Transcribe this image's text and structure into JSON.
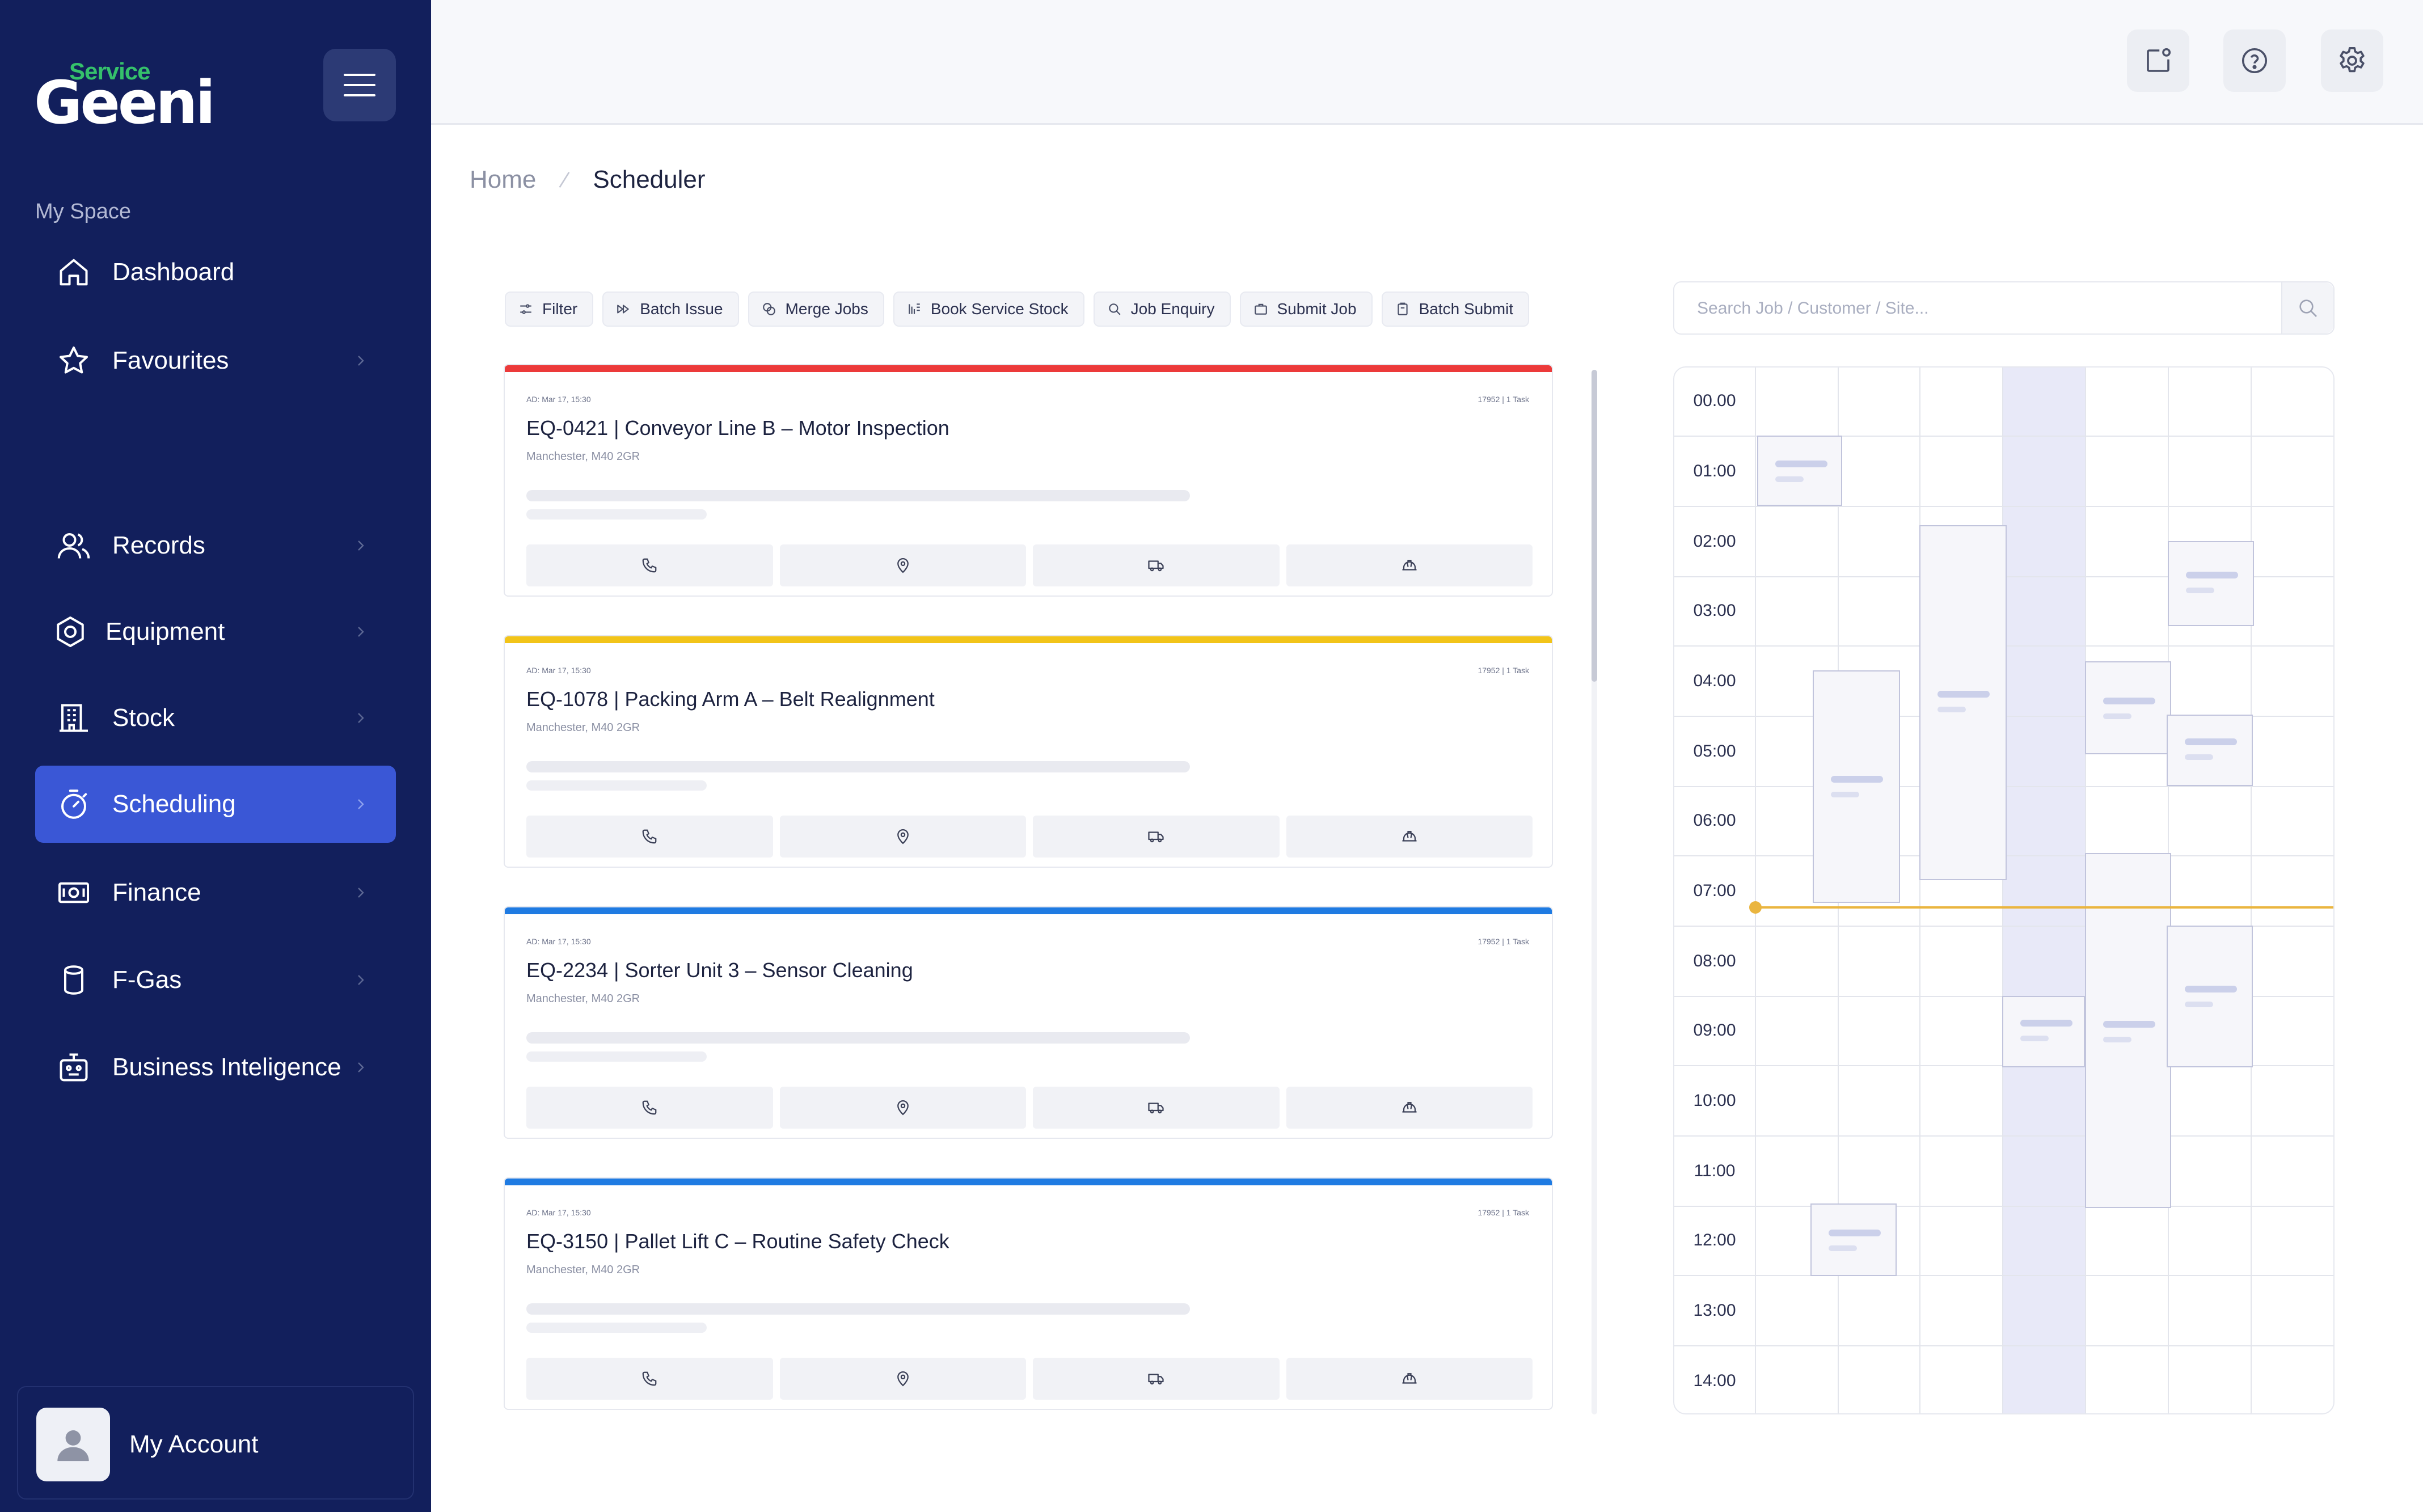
{
  "brand": {
    "service": "Service",
    "name": "Geeni"
  },
  "sidebar": {
    "section_label": "My Space",
    "items": [
      {
        "label": "Dashboard",
        "icon": "home-icon",
        "chevron": false,
        "active": false
      },
      {
        "label": "Favourites",
        "icon": "star-icon",
        "chevron": true,
        "active": false
      },
      {
        "label": "Records",
        "icon": "users-icon",
        "chevron": true,
        "active": false
      },
      {
        "label": "Equipment",
        "icon": "hexagon-gear-icon",
        "chevron": true,
        "active": false
      },
      {
        "label": "Stock",
        "icon": "building-icon",
        "chevron": true,
        "active": false
      },
      {
        "label": "Scheduling",
        "icon": "stopwatch-icon",
        "chevron": true,
        "active": true
      },
      {
        "label": "Finance",
        "icon": "money-icon",
        "chevron": true,
        "active": false
      },
      {
        "label": "F-Gas",
        "icon": "gas-cylinder-icon",
        "chevron": true,
        "active": false
      },
      {
        "label": "Business Inteligence",
        "icon": "robot-icon",
        "chevron": true,
        "active": false
      }
    ],
    "account_label": "My Account"
  },
  "topbar": {
    "buttons": [
      "notification-icon",
      "help-icon",
      "settings-icon"
    ]
  },
  "breadcrumb": {
    "home": "Home",
    "current": "Scheduler"
  },
  "toolbar": {
    "buttons": [
      {
        "label": "Filter",
        "icon": "filter-icon"
      },
      {
        "label": "Batch Issue",
        "icon": "fast-forward-icon"
      },
      {
        "label": "Merge Jobs",
        "icon": "merge-icon"
      },
      {
        "label": "Book Service Stock",
        "icon": "stock-icon"
      },
      {
        "label": "Job Enquiry",
        "icon": "search-icon"
      },
      {
        "label": "Submit Job",
        "icon": "briefcase-icon"
      },
      {
        "label": "Batch Submit",
        "icon": "clipboard-icon"
      }
    ]
  },
  "search": {
    "placeholder": "Search Job / Customer / Site..."
  },
  "jobs": [
    {
      "title": "EQ-0421 | Conveyor Line B – Motor Inspection",
      "address": "Manchester, M40 2GR",
      "meta_left": "AD: Mar 17, 15:30",
      "meta_right": "17952 | 1 Task",
      "stripe": "#ec3a3a"
    },
    {
      "title": "EQ-1078 | Packing Arm A – Belt Realignment",
      "address": "Manchester, M40 2GR",
      "meta_left": "AD: Mar 17, 15:30",
      "meta_right": "17952 | 1 Task",
      "stripe": "#f2c419"
    },
    {
      "title": "EQ-2234 | Sorter Unit 3 – Sensor Cleaning",
      "address": "Manchester, M40 2GR",
      "meta_left": "AD: Mar 17, 15:30",
      "meta_right": "17952 | 1 Task",
      "stripe": "#1f7be2"
    },
    {
      "title": "EQ-3150 | Pallet Lift C – Routine Safety Check",
      "address": "Manchester, M40 2GR",
      "meta_left": "AD: Mar 17, 15:30",
      "meta_right": "17952 | 1 Task",
      "stripe": "#1f7be2"
    }
  ],
  "job_actions": [
    "phone-icon",
    "location-pin-icon",
    "truck-icon",
    "hard-hat-icon"
  ],
  "scheduler": {
    "hours": [
      "00.00",
      "01:00",
      "02:00",
      "03:00",
      "04:00",
      "05:00",
      "06:00",
      "07:00",
      "08:00",
      "09:00",
      "10:00",
      "11:00",
      "12:00",
      "13:00",
      "14:00"
    ],
    "now_color": "#eab53f",
    "accent": "#3a57d6"
  }
}
